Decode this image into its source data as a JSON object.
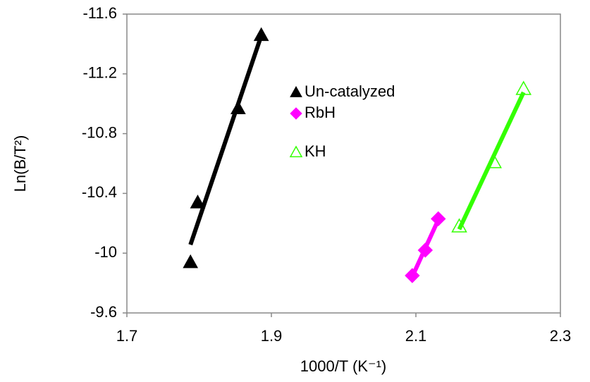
{
  "chart_data": {
    "type": "scatter",
    "trendline": true,
    "x_label": "1000/T (K⁻¹)",
    "y_label": "Ln(B/T²)",
    "xlim": [
      1.7,
      2.3
    ],
    "xticks": [
      1.7,
      1.9,
      2.1,
      2.3
    ],
    "ylim": [
      -9.6,
      -11.6
    ],
    "yticks": [
      -11.6,
      -11.2,
      -10.8,
      -10.4,
      -10,
      -9.6
    ],
    "legend": "upper-center",
    "series": [
      {
        "name": "Un-catalyzed",
        "color": "#000000",
        "marker": "triangle",
        "x": [
          1.788,
          1.798,
          1.854,
          1.886
        ],
        "values": [
          -9.94,
          -10.34,
          -10.97,
          -11.46
        ]
      },
      {
        "name": "RbH",
        "color": "#ff00ff",
        "marker": "diamond",
        "x": [
          2.095,
          2.113,
          2.131
        ],
        "values": [
          -9.85,
          -10.02,
          -10.23
        ]
      },
      {
        "name": "KH",
        "color": "#33ff00",
        "marker": "open-triangle",
        "x": [
          2.16,
          2.208,
          2.249
        ],
        "values": [
          -10.18,
          -10.61,
          -11.1
        ]
      }
    ]
  }
}
